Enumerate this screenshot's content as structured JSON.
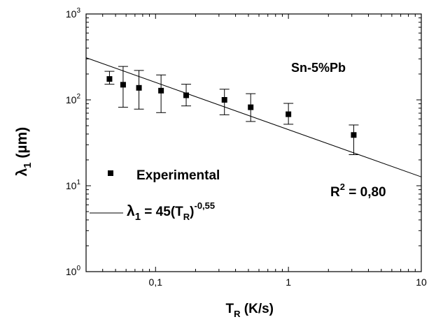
{
  "chart_data": {
    "type": "scatter",
    "x_scale": "log",
    "y_scale": "log",
    "xlim": [
      0.03,
      10
    ],
    "ylim": [
      1,
      1000
    ],
    "x_ticks": [
      {
        "value": 0.1,
        "label": "0,1"
      },
      {
        "value": 1,
        "label": "1"
      },
      {
        "value": 10,
        "label": "10"
      }
    ],
    "y_ticks": [
      {
        "value": 1,
        "base": "10",
        "exp": "0"
      },
      {
        "value": 10,
        "base": "10",
        "exp": "1"
      },
      {
        "value": 100,
        "base": "10",
        "exp": "2"
      },
      {
        "value": 1000,
        "base": "10",
        "exp": "3"
      }
    ],
    "xlabel": {
      "main": "T",
      "sub": "R",
      "rest": " (K/s)"
    },
    "ylabel": {
      "main": "λ",
      "sub": "1",
      "rest": " (µm)"
    },
    "annotation_alloy": "Sn-5%Pb",
    "annotation_r2": {
      "main": "R",
      "sup": "2",
      "rest": " = 0,80"
    },
    "legend": {
      "marker_label": "Experimental",
      "line_label": {
        "main": "λ",
        "sub1": "1",
        "mid": " = 45(T",
        "sub2": "R",
        "close": ")",
        "sup": "-0,55"
      }
    },
    "series": [
      {
        "points": [
          {
            "x": 0.045,
            "y": 175,
            "err_low": 152,
            "err_high": 215
          },
          {
            "x": 0.057,
            "y": 150,
            "err_low": 82,
            "err_high": 245
          },
          {
            "x": 0.075,
            "y": 138,
            "err_low": 78,
            "err_high": 220
          },
          {
            "x": 0.11,
            "y": 128,
            "err_low": 71,
            "err_high": 195
          },
          {
            "x": 0.17,
            "y": 113,
            "err_low": 85,
            "err_high": 152
          },
          {
            "x": 0.33,
            "y": 100,
            "err_low": 67,
            "err_high": 133
          },
          {
            "x": 0.52,
            "y": 82,
            "err_low": 56,
            "err_high": 118
          },
          {
            "x": 1.0,
            "y": 68,
            "err_low": 52,
            "err_high": 91
          },
          {
            "x": 3.1,
            "y": 39,
            "err_low": 23,
            "err_high": 51
          }
        ]
      }
    ],
    "fit": {
      "a": 45,
      "b": -0.55
    }
  }
}
